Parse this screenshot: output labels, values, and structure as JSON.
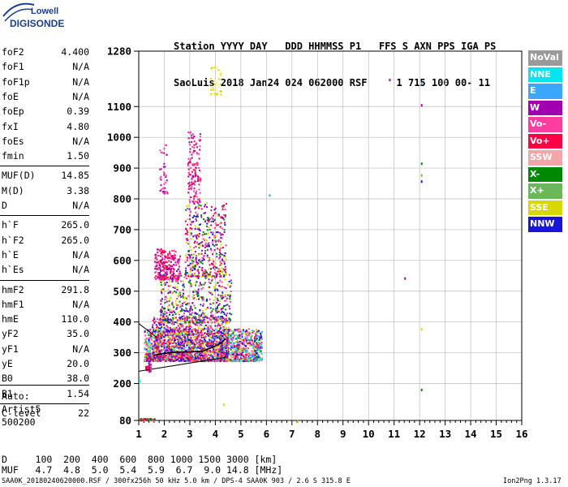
{
  "logo": {
    "line1": "Lowell",
    "line2": "DIGISONDE"
  },
  "header": {
    "row1": "Station YYYY DAY   DDD HHMMSS P1   FFS S AXN PPS IGA PS",
    "row2": "SaoLuis 2018 Jan24 024 062000 RSF     1 715 100 00- 11"
  },
  "params": [
    {
      "k": "foF2",
      "v": "4.400"
    },
    {
      "k": "foF1",
      "v": "N/A"
    },
    {
      "k": "foF1p",
      "v": "N/A"
    },
    {
      "k": "foE",
      "v": "N/A"
    },
    {
      "k": "foEp",
      "v": "0.39"
    },
    {
      "k": "fxI",
      "v": "4.80"
    },
    {
      "k": "foEs",
      "v": "N/A"
    },
    {
      "k": "fmin",
      "v": "1.50"
    },
    {
      "k": "MUF(D)",
      "v": "14.85"
    },
    {
      "k": "M(D)",
      "v": "3.38"
    },
    {
      "k": "D",
      "v": "N/A"
    },
    {
      "k": "h`F",
      "v": "265.0"
    },
    {
      "k": "h`F2",
      "v": "265.0"
    },
    {
      "k": "h`E",
      "v": "N/A"
    },
    {
      "k": "h`Es",
      "v": "N/A"
    },
    {
      "k": "hmF2",
      "v": "291.8"
    },
    {
      "k": "hmF1",
      "v": "N/A"
    },
    {
      "k": "hmE",
      "v": "110.0"
    },
    {
      "k": "yF2",
      "v": "35.0"
    },
    {
      "k": "yF1",
      "v": "N/A"
    },
    {
      "k": "yE",
      "v": "20.0"
    },
    {
      "k": "B0",
      "v": "38.0"
    },
    {
      "k": "B1",
      "v": "1.54"
    },
    {
      "k": "C-level",
      "v": "22"
    }
  ],
  "notes": [
    "Auto:",
    "Artist5",
    "500200"
  ],
  "legend": [
    {
      "label": "NoVal",
      "color": "#9a9a9a"
    },
    {
      "label": "NNE",
      "color": "#00e5ee"
    },
    {
      "label": "E",
      "color": "#3aa6ff"
    },
    {
      "label": "W",
      "color": "#a000b0"
    },
    {
      "label": "Vo-",
      "color": "#ff3ca0"
    },
    {
      "label": "Vo+",
      "color": "#ff0044"
    },
    {
      "label": "SSW",
      "color": "#f4a6a6"
    },
    {
      "label": "X-",
      "color": "#008800"
    },
    {
      "label": "X+",
      "color": "#6ab85a"
    },
    {
      "label": "SSE",
      "color": "#d8d800"
    },
    {
      "label": "NNW",
      "color": "#1a14d8"
    }
  ],
  "chart_data": {
    "type": "scatter",
    "xlim": [
      1,
      16
    ],
    "ylim": [
      80,
      1280
    ],
    "x_ticks": [
      "1",
      "2",
      "3",
      "4",
      "5",
      "6",
      "7",
      "8",
      "9",
      "10",
      "11",
      "12",
      "13",
      "14",
      "15",
      "16"
    ],
    "y_ticks": [
      "80",
      "200",
      "300",
      "400",
      "500",
      "600",
      "700",
      "800",
      "900",
      "1000",
      "1100",
      "1280"
    ],
    "y_tick_values": [
      80,
      200,
      300,
      400,
      500,
      600,
      700,
      800,
      900,
      1000,
      1100,
      1280
    ],
    "grid": true,
    "trace_line": {
      "x": [
        1.6,
        2.0,
        2.5,
        3.0,
        3.5,
        3.9,
        4.2,
        4.4
      ],
      "y": [
        292,
        298,
        302,
        303,
        305,
        318,
        330,
        345
      ]
    },
    "lower_line": {
      "x": [
        1.0,
        4.4
      ],
      "y": [
        240,
        285
      ]
    },
    "upper_line": {
      "x": [
        1.0,
        1.7
      ],
      "y": [
        395,
        350
      ]
    },
    "clusters": [
      {
        "x": [
          1.2,
          5.8
        ],
        "y": [
          275,
          380
        ],
        "n": 1800,
        "colors": [
          "#ff0044",
          "#ff3ca0",
          "#f4a6a6",
          "#d8d800",
          "#6ab85a",
          "#008800",
          "#a000b0",
          "#1a14d8",
          "#3aa6ff",
          "#00e5ee"
        ]
      },
      {
        "x": [
          1.5,
          4.5
        ],
        "y": [
          275,
          420
        ],
        "n": 900,
        "colors": [
          "#ff0044",
          "#ff3ca0",
          "#a000b0",
          "#1a14d8",
          "#d8d800"
        ]
      },
      {
        "x": [
          1.8,
          4.6
        ],
        "y": [
          400,
          560
        ],
        "n": 500,
        "colors": [
          "#a000b0",
          "#1a14d8",
          "#ff3ca0",
          "#d8d800",
          "#008800"
        ]
      },
      {
        "x": [
          1.6,
          2.6
        ],
        "y": [
          540,
          640
        ],
        "n": 250,
        "colors": [
          "#a000b0",
          "#ff3ca0",
          "#ff0044"
        ]
      },
      {
        "x": [
          2.8,
          4.4
        ],
        "y": [
          550,
          790
        ],
        "n": 420,
        "colors": [
          "#a000b0",
          "#ff3ca0",
          "#d8d800",
          "#1a14d8",
          "#ff0044",
          "#008800"
        ]
      },
      {
        "x": [
          2.9,
          3.4
        ],
        "y": [
          790,
          1020
        ],
        "n": 140,
        "colors": [
          "#ff3ca0",
          "#a000b0",
          "#ff0044"
        ]
      },
      {
        "x": [
          1.8,
          2.1
        ],
        "y": [
          820,
          980
        ],
        "n": 40,
        "colors": [
          "#ff3ca0",
          "#a000b0"
        ]
      },
      {
        "x": [
          3.8,
          4.2
        ],
        "y": [
          1140,
          1230
        ],
        "n": 45,
        "colors": [
          "#d8d800",
          "#f4f48a"
        ]
      },
      {
        "x": [
          1.0,
          1.6
        ],
        "y": [
          82,
          88
        ],
        "n": 50,
        "colors": [
          "#ff0044",
          "#ff3ca0",
          "#008800"
        ]
      },
      {
        "x": [
          1.25,
          1.45
        ],
        "y": [
          240,
          300
        ],
        "n": 40,
        "colors": [
          "#a000b0",
          "#ff0044"
        ]
      }
    ],
    "isolated_points": [
      {
        "x": 10.8,
        "y": 1190,
        "c": "#a000b0"
      },
      {
        "x": 12.05,
        "y": 1180,
        "c": "#3aa6ff"
      },
      {
        "x": 12.05,
        "y": 1108,
        "c": "#a000b0"
      },
      {
        "x": 12.05,
        "y": 918,
        "c": "#008800"
      },
      {
        "x": 12.05,
        "y": 880,
        "c": "#6ab85a"
      },
      {
        "x": 12.05,
        "y": 860,
        "c": "#1a14d8"
      },
      {
        "x": 6.1,
        "y": 815,
        "c": "#3aa6ff"
      },
      {
        "x": 11.4,
        "y": 545,
        "c": "#a000b0"
      },
      {
        "x": 12.05,
        "y": 380,
        "c": "#d8d800"
      },
      {
        "x": 12.05,
        "y": 183,
        "c": "#008800"
      },
      {
        "x": 7.2,
        "y": 80,
        "c": "#d8d800"
      },
      {
        "x": 4.3,
        "y": 135,
        "c": "#d8d800"
      },
      {
        "x": 1.0,
        "y": 212,
        "c": "#00e5ee"
      }
    ]
  },
  "footer": {
    "row1": "D     100  200  400  600  800 1000 1500 3000 [km]",
    "row2": "MUF   4.7  4.8  5.0  5.4  5.9  6.7  9.0 14.8 [MHz]",
    "file": "SAA0K_20180240620000.RSF / 300fx256h 50 kHz 5.0 km / DPS-4 SAA0K 903 / 2.6 S 315.8 E",
    "version": "Ion2Png 1.3.17"
  }
}
